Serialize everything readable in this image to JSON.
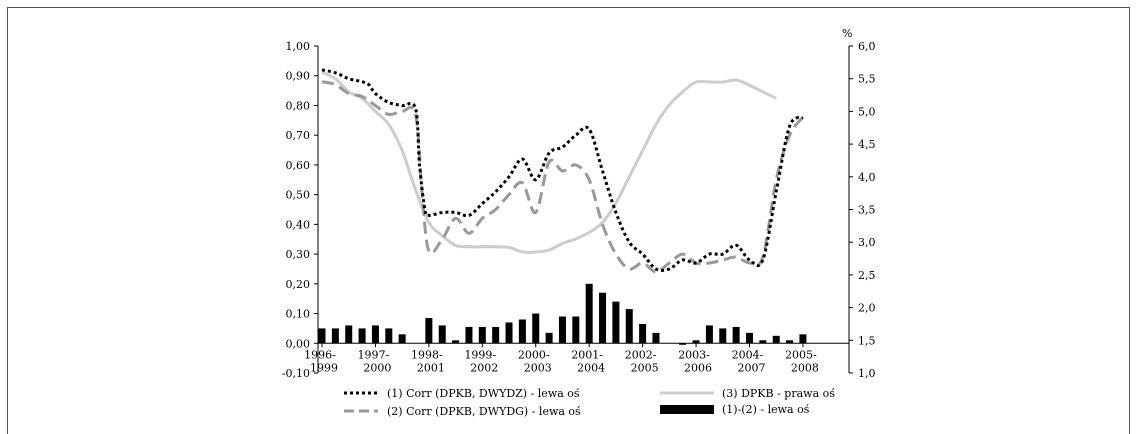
{
  "chart_data": {
    "type": "line",
    "title": "",
    "xlabel": "",
    "ylabel": "",
    "y2label": "%",
    "ylim": [
      -0.1,
      1.0
    ],
    "y2lim": [
      1.0,
      6.0
    ],
    "grid": false,
    "legend_position": "bottom",
    "y_ticks": [
      "1,00",
      "0,90",
      "0,80",
      "0,70",
      "0,60",
      "0,50",
      "0,40",
      "0,30",
      "0,20",
      "0,10",
      "0,00",
      "-0,10"
    ],
    "y2_ticks": [
      "6,0",
      "5,5",
      "5,0",
      "4,5",
      "4,0",
      "3,5",
      "3,0",
      "2,5",
      "2,0",
      "1,5",
      "1,0"
    ],
    "x_ticks": [
      {
        "line1": "1996-",
        "line2": "1999",
        "t": 0
      },
      {
        "line1": "1997-",
        "line2": "2000",
        "t": 4
      },
      {
        "line1": "1998-",
        "line2": "2001",
        "t": 8
      },
      {
        "line1": "1999-",
        "line2": "2002",
        "t": 12
      },
      {
        "line1": "2000-",
        "line2": "2003",
        "t": 16
      },
      {
        "line1": "2001-",
        "line2": "2004",
        "t": 20
      },
      {
        "line1": "2002-",
        "line2": "2005",
        "t": 24
      },
      {
        "line1": "2003-",
        "line2": "2006",
        "t": 28
      },
      {
        "line1": "2004-",
        "line2": "2007",
        "t": 32
      },
      {
        "line1": "2005-",
        "line2": "2008",
        "t": 36
      }
    ],
    "t_range": [
      0,
      39
    ],
    "series": [
      {
        "name": "(1) Corr (DPKB, DWYDZ) - lewa oś",
        "axis": "left",
        "kind": "line",
        "style": "dotted",
        "color": "#000000",
        "points": [
          [
            0,
            0.92
          ],
          [
            1,
            0.91
          ],
          [
            2,
            0.89
          ],
          [
            3,
            0.88
          ],
          [
            3.5,
            0.87
          ],
          [
            4,
            0.84
          ],
          [
            5,
            0.81
          ],
          [
            6,
            0.8
          ],
          [
            7,
            0.79
          ],
          [
            7.3,
            0.6
          ],
          [
            7.7,
            0.45
          ],
          [
            8,
            0.43
          ],
          [
            9,
            0.44
          ],
          [
            10,
            0.44
          ],
          [
            11,
            0.43
          ],
          [
            12,
            0.47
          ],
          [
            13,
            0.51
          ],
          [
            14,
            0.56
          ],
          [
            15,
            0.62
          ],
          [
            16,
            0.55
          ],
          [
            17,
            0.64
          ],
          [
            18,
            0.66
          ],
          [
            19,
            0.7
          ],
          [
            20,
            0.72
          ],
          [
            21,
            0.58
          ],
          [
            22,
            0.44
          ],
          [
            23,
            0.34
          ],
          [
            24,
            0.3
          ],
          [
            25,
            0.25
          ],
          [
            26,
            0.25
          ],
          [
            27,
            0.28
          ],
          [
            28,
            0.27
          ],
          [
            29,
            0.3
          ],
          [
            30,
            0.3
          ],
          [
            31,
            0.33
          ],
          [
            32,
            0.28
          ],
          [
            33,
            0.28
          ],
          [
            34,
            0.51
          ],
          [
            35,
            0.73
          ],
          [
            36,
            0.76
          ]
        ]
      },
      {
        "name": "(2) Corr (DPKB, DWYDG) - lewa oś",
        "axis": "left",
        "kind": "line",
        "style": "dashed",
        "color": "#999999",
        "points": [
          [
            0,
            0.88
          ],
          [
            1,
            0.87
          ],
          [
            2,
            0.84
          ],
          [
            3,
            0.83
          ],
          [
            4,
            0.8
          ],
          [
            5,
            0.77
          ],
          [
            6,
            0.78
          ],
          [
            7,
            0.77
          ],
          [
            7.5,
            0.5
          ],
          [
            8,
            0.31
          ],
          [
            9,
            0.35
          ],
          [
            10,
            0.42
          ],
          [
            11,
            0.37
          ],
          [
            12,
            0.42
          ],
          [
            13,
            0.45
          ],
          [
            14,
            0.5
          ],
          [
            15,
            0.54
          ],
          [
            16,
            0.44
          ],
          [
            17,
            0.61
          ],
          [
            18,
            0.58
          ],
          [
            19,
            0.6
          ],
          [
            20,
            0.55
          ],
          [
            21,
            0.4
          ],
          [
            22,
            0.3
          ],
          [
            23,
            0.25
          ],
          [
            24,
            0.27
          ],
          [
            25,
            0.24
          ],
          [
            26,
            0.27
          ],
          [
            27,
            0.3
          ],
          [
            28,
            0.27
          ],
          [
            29,
            0.27
          ],
          [
            30,
            0.28
          ],
          [
            31,
            0.29
          ],
          [
            32,
            0.27
          ],
          [
            33,
            0.29
          ],
          [
            34,
            0.55
          ],
          [
            35,
            0.7
          ],
          [
            36,
            0.76
          ]
        ]
      },
      {
        "name": "(3) DPKB - prawa oś",
        "axis": "right",
        "kind": "line",
        "style": "solid",
        "color": "#cccccc",
        "points": [
          [
            0,
            5.6
          ],
          [
            1,
            5.5
          ],
          [
            2,
            5.3
          ],
          [
            3,
            5.2
          ],
          [
            4,
            5.0
          ],
          [
            5,
            4.8
          ],
          [
            6,
            4.4
          ],
          [
            7,
            3.8
          ],
          [
            8,
            3.3
          ],
          [
            9,
            3.1
          ],
          [
            10,
            2.95
          ],
          [
            11,
            2.93
          ],
          [
            12,
            2.93
          ],
          [
            13,
            2.93
          ],
          [
            14,
            2.92
          ],
          [
            15,
            2.85
          ],
          [
            16,
            2.85
          ],
          [
            17,
            2.88
          ],
          [
            18,
            2.98
          ],
          [
            19,
            3.05
          ],
          [
            20,
            3.15
          ],
          [
            21,
            3.3
          ],
          [
            22,
            3.6
          ],
          [
            23,
            4.0
          ],
          [
            24,
            4.4
          ],
          [
            25,
            4.8
          ],
          [
            26,
            5.1
          ],
          [
            27,
            5.3
          ],
          [
            28,
            5.45
          ],
          [
            29,
            5.45
          ],
          [
            30,
            5.45
          ],
          [
            31,
            5.48
          ],
          [
            32,
            5.4
          ],
          [
            33,
            5.3
          ],
          [
            34,
            5.2
          ]
        ]
      },
      {
        "name": "(1)-(2) - lewa oś",
        "axis": "left",
        "kind": "bar",
        "color": "#000000",
        "x": [
          0,
          1,
          2,
          3,
          4,
          5,
          6,
          8,
          9,
          10,
          11,
          12,
          13,
          14,
          15,
          16,
          17,
          18,
          19,
          20,
          21,
          22,
          23,
          24,
          25,
          27,
          28,
          29,
          30,
          31,
          32,
          33,
          34,
          35,
          36
        ],
        "values": [
          0.05,
          0.05,
          0.06,
          0.05,
          0.06,
          0.05,
          0.03,
          0.085,
          0.06,
          0.01,
          0.055,
          0.055,
          0.055,
          0.07,
          0.08,
          0.1,
          0.035,
          0.09,
          0.09,
          0.2,
          0.17,
          0.14,
          0.115,
          0.065,
          0.035,
          -0.005,
          0.01,
          0.06,
          0.05,
          0.055,
          0.035,
          0.01,
          0.025,
          0.01,
          0.03
        ]
      }
    ]
  }
}
